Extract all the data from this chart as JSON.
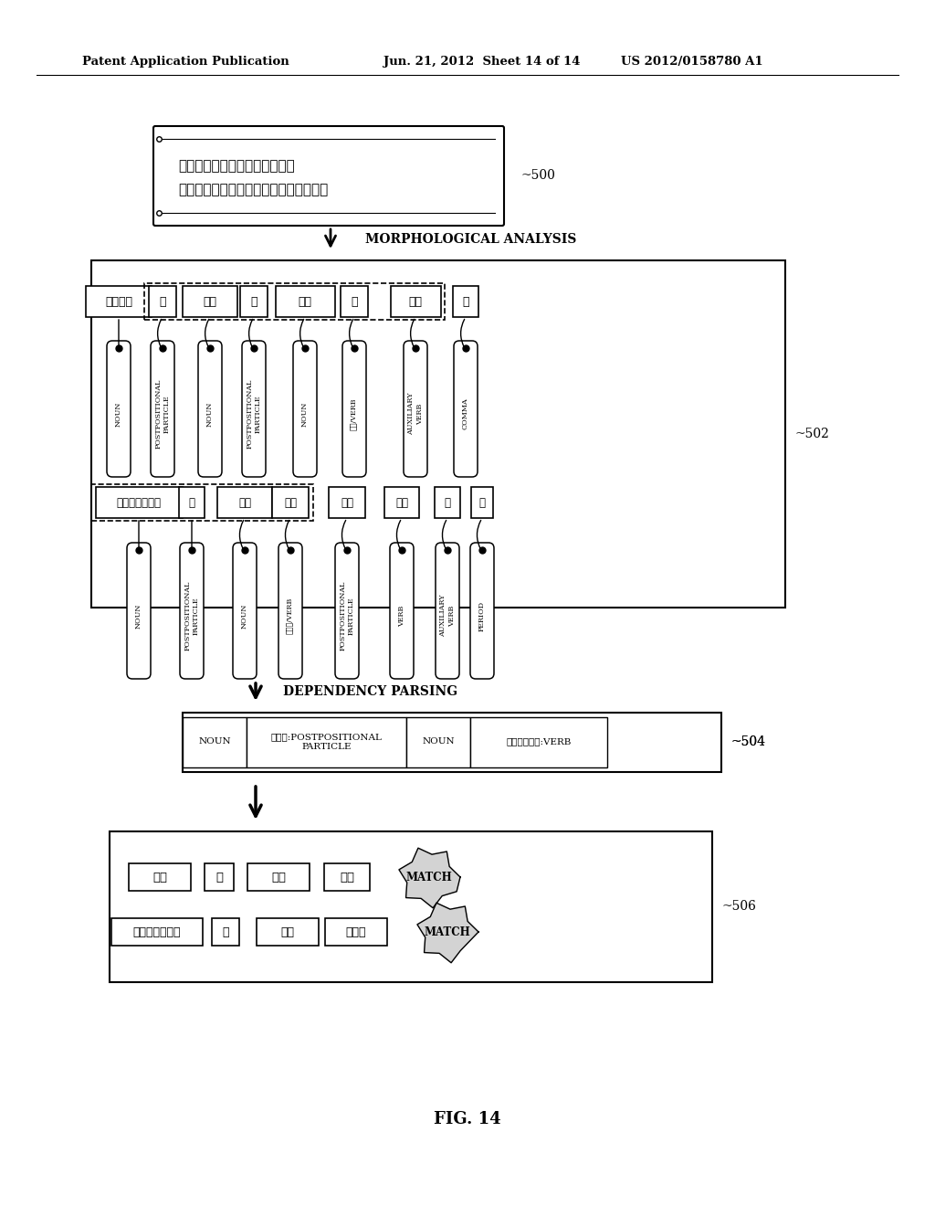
{
  "bg_color": "#ffffff",
  "header_left": "Patent Application Publication",
  "header_mid": "Jun. 21, 2012  Sheet 14 of 14",
  "header_right": "US 2012/0158780 A1",
  "fig_label": "FIG. 14",
  "box500_lines": [
    "パソコンの設定を変更したら、",
    "インターネットに接続できなくなった。"
  ],
  "label500": "~500",
  "morph_label": "MORPHOLOGICAL ANALYSIS",
  "label502": "~502",
  "dep_label": "DEPENDENCY PARSING",
  "label504": "~504",
  "label506": "~506",
  "row1_words": [
    "パソコン",
    "の",
    "設定",
    "を",
    "変更",
    "し",
    "たら",
    "、"
  ],
  "row1_tags": [
    "NOUN",
    "POSTPOSITIONAL\nPARTICLE",
    "NOUN",
    "POSTPOSITIONAL\nPARTICLE",
    "NOUN",
    "する/VERB",
    "AUXILIARY\nVERB",
    "COMMA"
  ],
  "row2_words": [
    "インターネット",
    "に",
    "接続",
    "でき",
    "なく",
    "なっ",
    "た",
    "。"
  ],
  "row2_tags": [
    "NOUN",
    "POSTPOSITIONAL\nPARTICLE",
    "NOUN",
    "できる/VERB",
    "POSTPOSITIONAL\nPARTICLE",
    "VERB",
    "AUXILIARY\nVERB",
    "PERIOD"
  ],
  "dep_cells": [
    "NOUN",
    "を｜に:POSTPOSITIONAL\nPARTICLE",
    "NOUN",
    "する｜できる:VERB"
  ],
  "bottom_row1": [
    "設定",
    "を",
    "変更",
    "する"
  ],
  "bottom_row2": [
    "インターネット",
    "に",
    "接続",
    "できる"
  ],
  "match_label": "MATCH"
}
